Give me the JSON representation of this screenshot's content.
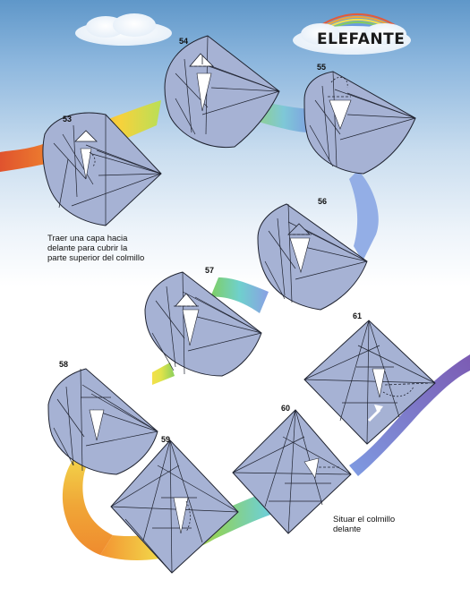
{
  "title": "ELEFANTE",
  "steps": [
    {
      "number": "53",
      "caption": [
        "Traer una capa hacia",
        "delante para cubrir la",
        "parte superior del colmillo"
      ]
    },
    {
      "number": "54"
    },
    {
      "number": "55"
    },
    {
      "number": "56"
    },
    {
      "number": "57"
    },
    {
      "number": "58"
    },
    {
      "number": "59"
    },
    {
      "number": "60",
      "caption": [
        "Situar el colmillo",
        "delante"
      ]
    },
    {
      "number": "61"
    }
  ],
  "colors": {
    "paper": "#a6b2d4",
    "paper_edge": "#ffffff",
    "line": "#1f2330",
    "tusk": "#ffffff",
    "sky": "#8db7de"
  }
}
